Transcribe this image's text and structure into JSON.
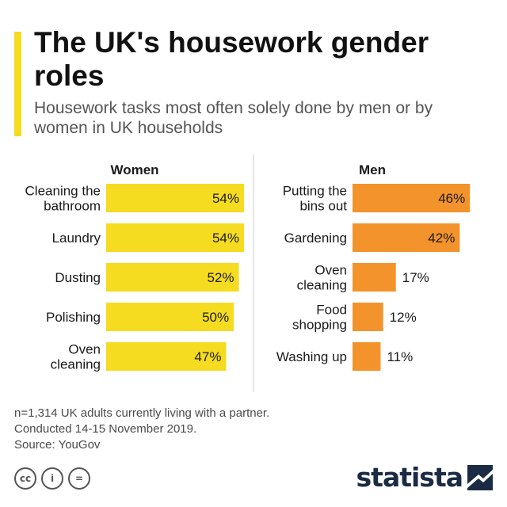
{
  "header": {
    "title": "The UK's housework gender roles",
    "subtitle": "Housework tasks most often solely done by men or by women in UK households"
  },
  "chart_data": {
    "type": "bar",
    "orientation": "horizontal",
    "groups": [
      {
        "name": "Women",
        "color": "#f5dc21",
        "categories": [
          [
            "Cleaning the",
            "bathroom"
          ],
          [
            "Laundry"
          ],
          [
            "Dusting"
          ],
          [
            "Polishing"
          ],
          [
            "Oven",
            "cleaning"
          ]
        ],
        "values": [
          54,
          54,
          52,
          50,
          47
        ],
        "labels": [
          "54%",
          "54%",
          "52%",
          "50%",
          "47%"
        ]
      },
      {
        "name": "Men",
        "color": "#f3932b",
        "categories": [
          [
            "Putting the",
            "bins out"
          ],
          [
            "Gardening"
          ],
          [
            "Oven",
            "cleaning"
          ],
          [
            "Food",
            "shopping"
          ],
          [
            "Washing up"
          ]
        ],
        "values": [
          46,
          42,
          17,
          12,
          11
        ],
        "labels": [
          "46%",
          "42%",
          "17%",
          "12%",
          "11%"
        ]
      }
    ],
    "unit": "%"
  },
  "footnote": {
    "lines": [
      "n=1,314 UK adults currently living with a partner.",
      "Conducted 14-15 November 2019.",
      "Source: YouGov"
    ]
  },
  "license": {
    "icons": [
      "cc-icon",
      "by-attribution-icon",
      "nd-equals-icon"
    ],
    "labels": [
      "cc",
      "i",
      "="
    ]
  },
  "brand": {
    "name": "statista"
  }
}
